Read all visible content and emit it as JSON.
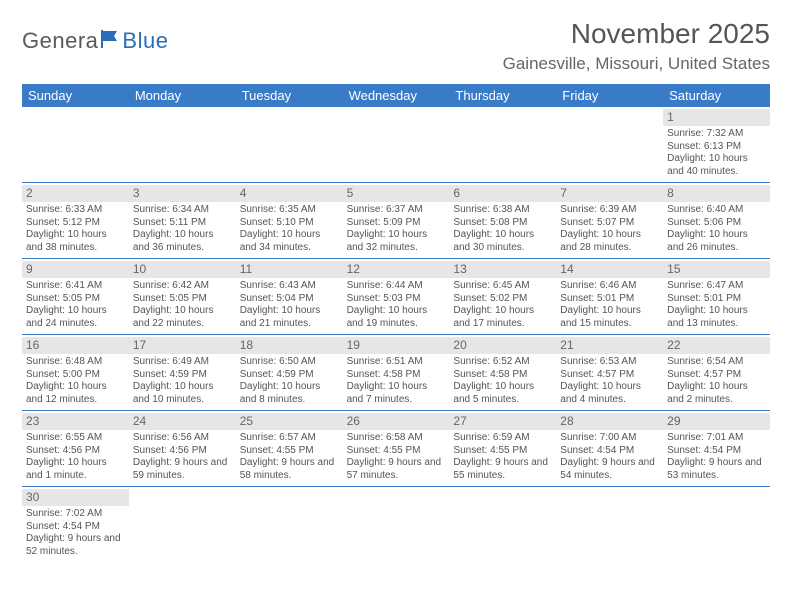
{
  "logo": {
    "text1": "Genera",
    "text2": "Blue"
  },
  "header": {
    "title": "November 2025",
    "location": "Gainesville, Missouri, United States"
  },
  "colors": {
    "header_bar": "#3a7bc8",
    "daynum_bg": "#e6e6e6",
    "text": "#555555",
    "logo_blue": "#2a6db8",
    "border": "#3a7bc8"
  },
  "daynames": [
    "Sunday",
    "Monday",
    "Tuesday",
    "Wednesday",
    "Thursday",
    "Friday",
    "Saturday"
  ],
  "weeks": [
    [
      null,
      null,
      null,
      null,
      null,
      null,
      {
        "n": "1",
        "sr": "Sunrise: 7:32 AM",
        "ss": "Sunset: 6:13 PM",
        "dl": "Daylight: 10 hours and 40 minutes."
      }
    ],
    [
      {
        "n": "2",
        "sr": "Sunrise: 6:33 AM",
        "ss": "Sunset: 5:12 PM",
        "dl": "Daylight: 10 hours and 38 minutes."
      },
      {
        "n": "3",
        "sr": "Sunrise: 6:34 AM",
        "ss": "Sunset: 5:11 PM",
        "dl": "Daylight: 10 hours and 36 minutes."
      },
      {
        "n": "4",
        "sr": "Sunrise: 6:35 AM",
        "ss": "Sunset: 5:10 PM",
        "dl": "Daylight: 10 hours and 34 minutes."
      },
      {
        "n": "5",
        "sr": "Sunrise: 6:37 AM",
        "ss": "Sunset: 5:09 PM",
        "dl": "Daylight: 10 hours and 32 minutes."
      },
      {
        "n": "6",
        "sr": "Sunrise: 6:38 AM",
        "ss": "Sunset: 5:08 PM",
        "dl": "Daylight: 10 hours and 30 minutes."
      },
      {
        "n": "7",
        "sr": "Sunrise: 6:39 AM",
        "ss": "Sunset: 5:07 PM",
        "dl": "Daylight: 10 hours and 28 minutes."
      },
      {
        "n": "8",
        "sr": "Sunrise: 6:40 AM",
        "ss": "Sunset: 5:06 PM",
        "dl": "Daylight: 10 hours and 26 minutes."
      }
    ],
    [
      {
        "n": "9",
        "sr": "Sunrise: 6:41 AM",
        "ss": "Sunset: 5:05 PM",
        "dl": "Daylight: 10 hours and 24 minutes."
      },
      {
        "n": "10",
        "sr": "Sunrise: 6:42 AM",
        "ss": "Sunset: 5:05 PM",
        "dl": "Daylight: 10 hours and 22 minutes."
      },
      {
        "n": "11",
        "sr": "Sunrise: 6:43 AM",
        "ss": "Sunset: 5:04 PM",
        "dl": "Daylight: 10 hours and 21 minutes."
      },
      {
        "n": "12",
        "sr": "Sunrise: 6:44 AM",
        "ss": "Sunset: 5:03 PM",
        "dl": "Daylight: 10 hours and 19 minutes."
      },
      {
        "n": "13",
        "sr": "Sunrise: 6:45 AM",
        "ss": "Sunset: 5:02 PM",
        "dl": "Daylight: 10 hours and 17 minutes."
      },
      {
        "n": "14",
        "sr": "Sunrise: 6:46 AM",
        "ss": "Sunset: 5:01 PM",
        "dl": "Daylight: 10 hours and 15 minutes."
      },
      {
        "n": "15",
        "sr": "Sunrise: 6:47 AM",
        "ss": "Sunset: 5:01 PM",
        "dl": "Daylight: 10 hours and 13 minutes."
      }
    ],
    [
      {
        "n": "16",
        "sr": "Sunrise: 6:48 AM",
        "ss": "Sunset: 5:00 PM",
        "dl": "Daylight: 10 hours and 12 minutes."
      },
      {
        "n": "17",
        "sr": "Sunrise: 6:49 AM",
        "ss": "Sunset: 4:59 PM",
        "dl": "Daylight: 10 hours and 10 minutes."
      },
      {
        "n": "18",
        "sr": "Sunrise: 6:50 AM",
        "ss": "Sunset: 4:59 PM",
        "dl": "Daylight: 10 hours and 8 minutes."
      },
      {
        "n": "19",
        "sr": "Sunrise: 6:51 AM",
        "ss": "Sunset: 4:58 PM",
        "dl": "Daylight: 10 hours and 7 minutes."
      },
      {
        "n": "20",
        "sr": "Sunrise: 6:52 AM",
        "ss": "Sunset: 4:58 PM",
        "dl": "Daylight: 10 hours and 5 minutes."
      },
      {
        "n": "21",
        "sr": "Sunrise: 6:53 AM",
        "ss": "Sunset: 4:57 PM",
        "dl": "Daylight: 10 hours and 4 minutes."
      },
      {
        "n": "22",
        "sr": "Sunrise: 6:54 AM",
        "ss": "Sunset: 4:57 PM",
        "dl": "Daylight: 10 hours and 2 minutes."
      }
    ],
    [
      {
        "n": "23",
        "sr": "Sunrise: 6:55 AM",
        "ss": "Sunset: 4:56 PM",
        "dl": "Daylight: 10 hours and 1 minute."
      },
      {
        "n": "24",
        "sr": "Sunrise: 6:56 AM",
        "ss": "Sunset: 4:56 PM",
        "dl": "Daylight: 9 hours and 59 minutes."
      },
      {
        "n": "25",
        "sr": "Sunrise: 6:57 AM",
        "ss": "Sunset: 4:55 PM",
        "dl": "Daylight: 9 hours and 58 minutes."
      },
      {
        "n": "26",
        "sr": "Sunrise: 6:58 AM",
        "ss": "Sunset: 4:55 PM",
        "dl": "Daylight: 9 hours and 57 minutes."
      },
      {
        "n": "27",
        "sr": "Sunrise: 6:59 AM",
        "ss": "Sunset: 4:55 PM",
        "dl": "Daylight: 9 hours and 55 minutes."
      },
      {
        "n": "28",
        "sr": "Sunrise: 7:00 AM",
        "ss": "Sunset: 4:54 PM",
        "dl": "Daylight: 9 hours and 54 minutes."
      },
      {
        "n": "29",
        "sr": "Sunrise: 7:01 AM",
        "ss": "Sunset: 4:54 PM",
        "dl": "Daylight: 9 hours and 53 minutes."
      }
    ],
    [
      {
        "n": "30",
        "sr": "Sunrise: 7:02 AM",
        "ss": "Sunset: 4:54 PM",
        "dl": "Daylight: 9 hours and 52 minutes."
      },
      null,
      null,
      null,
      null,
      null,
      null
    ]
  ]
}
